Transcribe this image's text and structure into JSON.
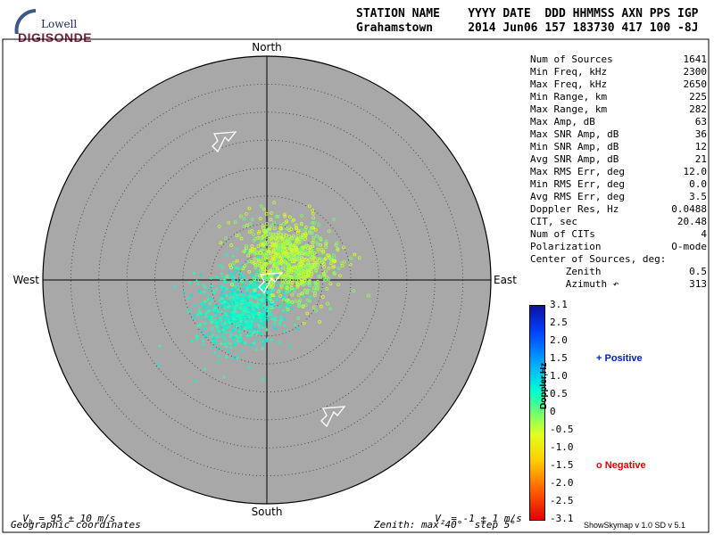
{
  "logo": {
    "line1": "Lowell",
    "line2": "DIGISONDE"
  },
  "header": {
    "line1": "STATION NAME    YYYY DATE  DDD HHMMSS AXN PPS IGP",
    "line2": "Grahamstown     2014 Jun06 157 183730 417 100 -8J"
  },
  "compass": {
    "north": "North",
    "south": "South",
    "east": "East",
    "west": "West"
  },
  "stats": [
    {
      "label": "Num of Sources",
      "value": "1641"
    },
    {
      "label": "Min Freq, kHz",
      "value": "2300"
    },
    {
      "label": "Max Freq, kHz",
      "value": "2650"
    },
    {
      "label": "Min Range, km",
      "value": "225"
    },
    {
      "label": "Max Range, km",
      "value": "282"
    },
    {
      "label": "Max Amp, dB",
      "value": "63"
    },
    {
      "label": "Max SNR Amp, dB",
      "value": "36"
    },
    {
      "label": "Min SNR Amp, dB",
      "value": "12"
    },
    {
      "label": "Avg SNR Amp, dB",
      "value": "21"
    },
    {
      "label": "Max RMS Err, deg",
      "value": "12.0"
    },
    {
      "label": "Min RMS Err, deg",
      "value": "0.0"
    },
    {
      "label": "Avg RMS Err, deg",
      "value": "3.5"
    },
    {
      "label": "Doppler Res, Hz",
      "value": "0.0488"
    },
    {
      "label": "CIT, sec",
      "value": "20.48"
    },
    {
      "label": "Num of CITs",
      "value": "4"
    },
    {
      "label": "Polarization",
      "value": "O-mode"
    },
    {
      "label": "Center of Sources, deg:",
      "value": ""
    },
    {
      "label": "      Zenith",
      "value": "0.5"
    },
    {
      "label": "      Azimuth ↶",
      "value": "313"
    }
  ],
  "colorbar": {
    "title": "Doppler,Hz",
    "ticks": [
      "3.1",
      "2.5",
      "2.0",
      "1.5",
      "1.0",
      "0.5",
      "0",
      "-0.5",
      "-1.0",
      "-1.5",
      "-2.0",
      "-2.5",
      "-3.1"
    ],
    "positive_label": "+ Positive",
    "negative_label": "o Negative"
  },
  "footer": {
    "vh": "V",
    "vh_sub": "h",
    "vh_rest": " = 95 ± 10 m/s",
    "vz": "V",
    "vz_sub": "z",
    "vz_rest": " = -1 ± 1 m/s",
    "coords": "Geographic coordinates",
    "zenith": "Zenith: max 40°  step 5°",
    "version": "ShowSkymap v 1.0  SD v 5.1"
  },
  "colors": {
    "disc": "#a8a8a8",
    "positive": "#0020c0",
    "negative": "#e00000"
  },
  "chart_data": {
    "type": "scatter",
    "projection": "polar-skymap",
    "zenith_max_deg": 40,
    "zenith_step_deg": 5,
    "series": [
      {
        "name": "Positive",
        "marker": "+",
        "doppler_hz_range": [
          0.3,
          0.9
        ],
        "cluster": {
          "east_deg": -4.5,
          "north_deg": -5.5,
          "spread_deg": [
            4.5,
            3.5
          ],
          "count": 800
        }
      },
      {
        "name": "Negative",
        "marker": "o",
        "doppler_hz_range": [
          -0.8,
          0.1
        ],
        "cluster": {
          "east_deg": 4.0,
          "north_deg": 4.0,
          "spread_deg": [
            3.5,
            4.5
          ],
          "count": 841
        }
      }
    ],
    "velocity_arrows_azimuth_deg": [
      45,
      45,
      45
    ]
  }
}
